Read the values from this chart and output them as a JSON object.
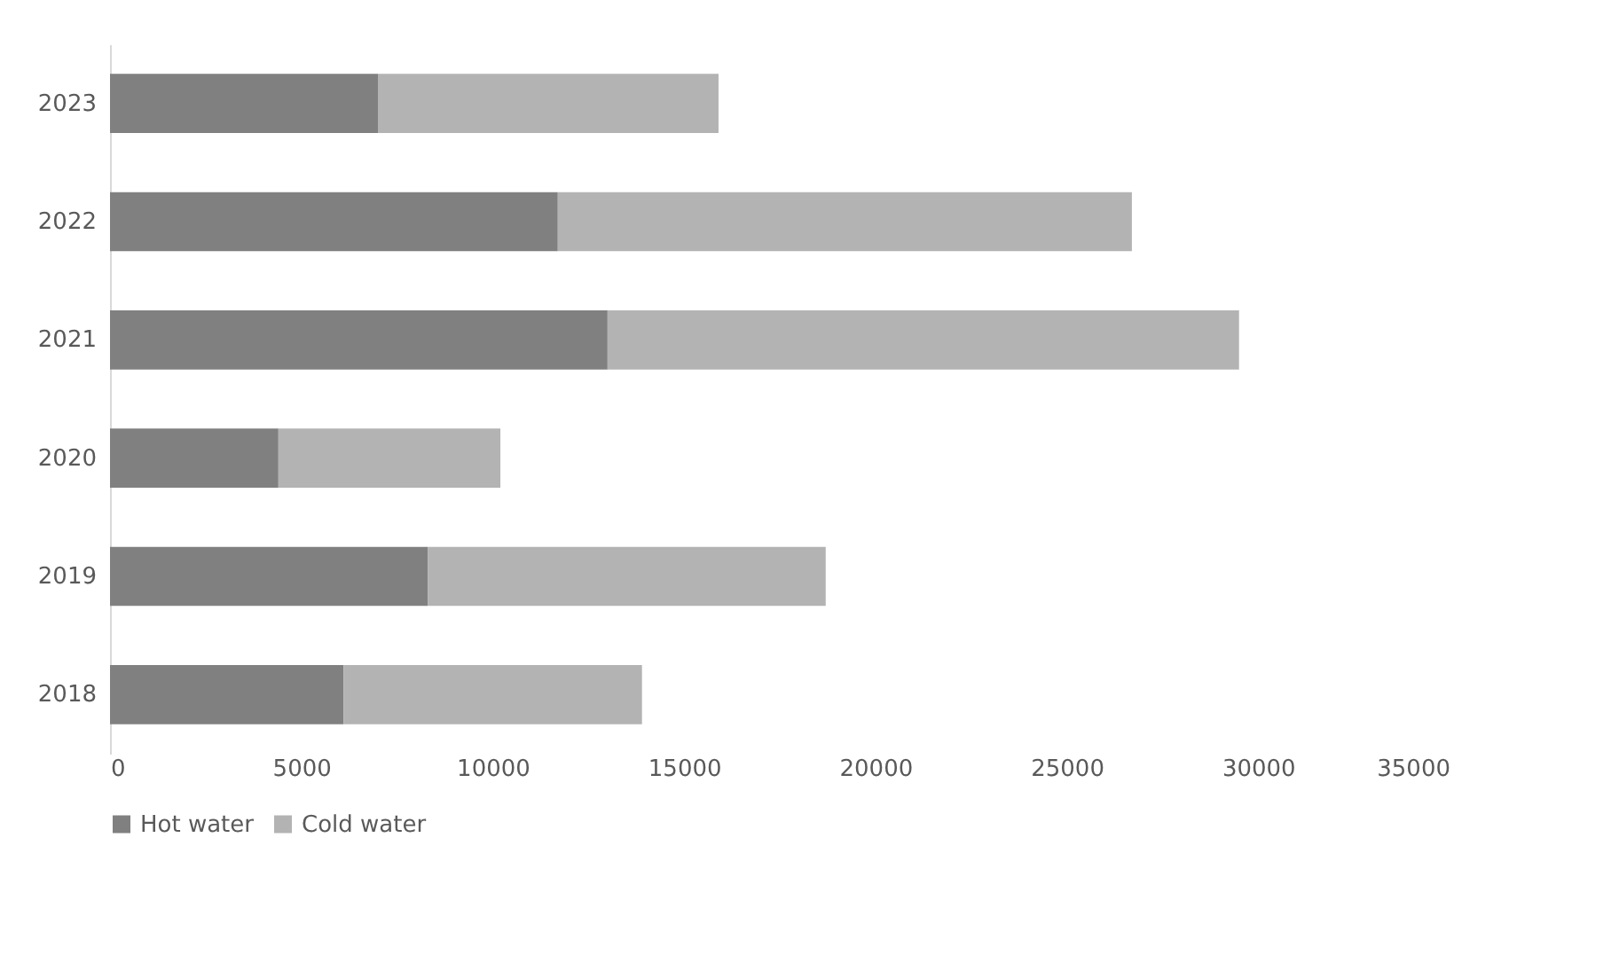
{
  "chart_data": {
    "type": "bar",
    "orientation": "horizontal",
    "stacked": true,
    "categories": [
      "2023",
      "2022",
      "2021",
      "2020",
      "2019",
      "2018"
    ],
    "series": [
      {
        "name": "Hot water",
        "color": "#808080",
        "values": [
          7000,
          11700,
          13000,
          4400,
          8300,
          6100
        ]
      },
      {
        "name": "Cold water",
        "color": "#b3b3b3",
        "values": [
          8900,
          15000,
          16500,
          5800,
          10400,
          7800
        ]
      }
    ],
    "xlim": [
      0,
      35000
    ],
    "xticks": [
      0,
      5000,
      10000,
      15000,
      20000,
      25000,
      30000,
      35000
    ],
    "grid": false,
    "legend": "bottom"
  }
}
